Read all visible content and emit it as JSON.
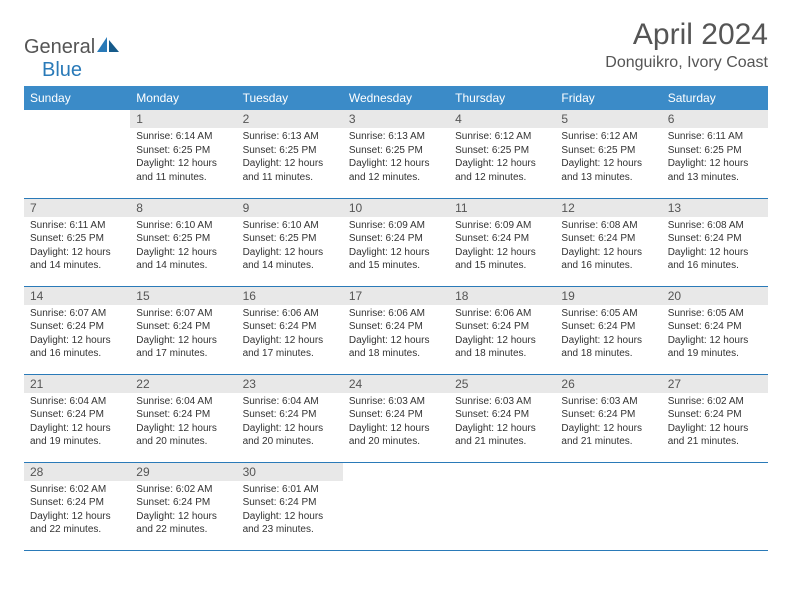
{
  "logo": {
    "general": "General",
    "blue": "Blue"
  },
  "title": "April 2024",
  "location": "Donguikro, Ivory Coast",
  "colors": {
    "header_bg": "#3b8bc8",
    "header_text": "#ffffff",
    "daynum_bg": "#e8e8e8",
    "border": "#2a7ab8",
    "text": "#333333",
    "title_text": "#555555"
  },
  "weekdays": [
    "Sunday",
    "Monday",
    "Tuesday",
    "Wednesday",
    "Thursday",
    "Friday",
    "Saturday"
  ],
  "weeks": [
    [
      null,
      {
        "n": "1",
        "sr": "6:14 AM",
        "ss": "6:25 PM",
        "dl": "12 hours and 11 minutes."
      },
      {
        "n": "2",
        "sr": "6:13 AM",
        "ss": "6:25 PM",
        "dl": "12 hours and 11 minutes."
      },
      {
        "n": "3",
        "sr": "6:13 AM",
        "ss": "6:25 PM",
        "dl": "12 hours and 12 minutes."
      },
      {
        "n": "4",
        "sr": "6:12 AM",
        "ss": "6:25 PM",
        "dl": "12 hours and 12 minutes."
      },
      {
        "n": "5",
        "sr": "6:12 AM",
        "ss": "6:25 PM",
        "dl": "12 hours and 13 minutes."
      },
      {
        "n": "6",
        "sr": "6:11 AM",
        "ss": "6:25 PM",
        "dl": "12 hours and 13 minutes."
      }
    ],
    [
      {
        "n": "7",
        "sr": "6:11 AM",
        "ss": "6:25 PM",
        "dl": "12 hours and 14 minutes."
      },
      {
        "n": "8",
        "sr": "6:10 AM",
        "ss": "6:25 PM",
        "dl": "12 hours and 14 minutes."
      },
      {
        "n": "9",
        "sr": "6:10 AM",
        "ss": "6:25 PM",
        "dl": "12 hours and 14 minutes."
      },
      {
        "n": "10",
        "sr": "6:09 AM",
        "ss": "6:24 PM",
        "dl": "12 hours and 15 minutes."
      },
      {
        "n": "11",
        "sr": "6:09 AM",
        "ss": "6:24 PM",
        "dl": "12 hours and 15 minutes."
      },
      {
        "n": "12",
        "sr": "6:08 AM",
        "ss": "6:24 PM",
        "dl": "12 hours and 16 minutes."
      },
      {
        "n": "13",
        "sr": "6:08 AM",
        "ss": "6:24 PM",
        "dl": "12 hours and 16 minutes."
      }
    ],
    [
      {
        "n": "14",
        "sr": "6:07 AM",
        "ss": "6:24 PM",
        "dl": "12 hours and 16 minutes."
      },
      {
        "n": "15",
        "sr": "6:07 AM",
        "ss": "6:24 PM",
        "dl": "12 hours and 17 minutes."
      },
      {
        "n": "16",
        "sr": "6:06 AM",
        "ss": "6:24 PM",
        "dl": "12 hours and 17 minutes."
      },
      {
        "n": "17",
        "sr": "6:06 AM",
        "ss": "6:24 PM",
        "dl": "12 hours and 18 minutes."
      },
      {
        "n": "18",
        "sr": "6:06 AM",
        "ss": "6:24 PM",
        "dl": "12 hours and 18 minutes."
      },
      {
        "n": "19",
        "sr": "6:05 AM",
        "ss": "6:24 PM",
        "dl": "12 hours and 18 minutes."
      },
      {
        "n": "20",
        "sr": "6:05 AM",
        "ss": "6:24 PM",
        "dl": "12 hours and 19 minutes."
      }
    ],
    [
      {
        "n": "21",
        "sr": "6:04 AM",
        "ss": "6:24 PM",
        "dl": "12 hours and 19 minutes."
      },
      {
        "n": "22",
        "sr": "6:04 AM",
        "ss": "6:24 PM",
        "dl": "12 hours and 20 minutes."
      },
      {
        "n": "23",
        "sr": "6:04 AM",
        "ss": "6:24 PM",
        "dl": "12 hours and 20 minutes."
      },
      {
        "n": "24",
        "sr": "6:03 AM",
        "ss": "6:24 PM",
        "dl": "12 hours and 20 minutes."
      },
      {
        "n": "25",
        "sr": "6:03 AM",
        "ss": "6:24 PM",
        "dl": "12 hours and 21 minutes."
      },
      {
        "n": "26",
        "sr": "6:03 AM",
        "ss": "6:24 PM",
        "dl": "12 hours and 21 minutes."
      },
      {
        "n": "27",
        "sr": "6:02 AM",
        "ss": "6:24 PM",
        "dl": "12 hours and 21 minutes."
      }
    ],
    [
      {
        "n": "28",
        "sr": "6:02 AM",
        "ss": "6:24 PM",
        "dl": "12 hours and 22 minutes."
      },
      {
        "n": "29",
        "sr": "6:02 AM",
        "ss": "6:24 PM",
        "dl": "12 hours and 22 minutes."
      },
      {
        "n": "30",
        "sr": "6:01 AM",
        "ss": "6:24 PM",
        "dl": "12 hours and 23 minutes."
      },
      null,
      null,
      null,
      null
    ]
  ],
  "labels": {
    "sunrise": "Sunrise:",
    "sunset": "Sunset:",
    "daylight": "Daylight:"
  }
}
